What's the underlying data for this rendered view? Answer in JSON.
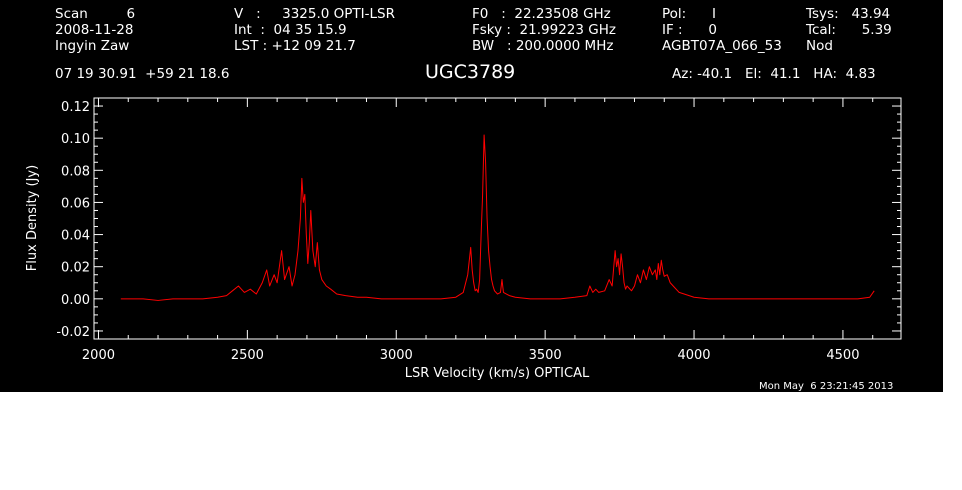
{
  "header": {
    "row1": {
      "scan": "Scan         6",
      "velocity": "V   :     3325.0 OPTI-LSR",
      "f0": "F0   :  22.23508 GHz",
      "pol": "Pol:      I",
      "tsys": "Tsys:   43.94"
    },
    "row2": {
      "date": "2008-11-28",
      "int": "Int  :  04 35 15.9",
      "fsky": "Fsky :  21.99223 GHz",
      "if": "IF :      0",
      "tcal": "Tcal:      5.39"
    },
    "row3": {
      "observer": "Ingyin Zaw",
      "lst": "LST : +12 09 21.7",
      "bw": "BW   : 200.0000 MHz",
      "project": "AGBT07A_066_53",
      "mode": "Nod"
    },
    "row4": {
      "coords": "07 19 30.91  +59 21 18.6",
      "source": "UGC3789",
      "pointing": "Az: -40.1   El:  41.1   HA:  4.83"
    }
  },
  "footer": {
    "timestamp": "Mon May  6 23:21:45 2013"
  },
  "colors": {
    "background": "#000000",
    "axes": "#ffffff",
    "series": "#ff0000"
  },
  "chart_data": {
    "type": "line",
    "title": "UGC3789",
    "xlabel": "LSR Velocity (km/s) OPTICAL",
    "ylabel": "Flux Density (Jy)",
    "xlim": [
      1985,
      4695
    ],
    "ylim": [
      -0.025,
      0.125
    ],
    "xticks": [
      2000,
      2500,
      3000,
      3500,
      4000,
      4500
    ],
    "yticks": [
      -0.02,
      0.0,
      0.02,
      0.04,
      0.06,
      0.08,
      0.1,
      0.12
    ],
    "ytick_labels": [
      "-0.02",
      "0.00",
      "0.02",
      "0.04",
      "0.06",
      "0.08",
      "0.10",
      "0.12"
    ],
    "grid": false,
    "series": [
      {
        "x": [
          2075,
          2100,
          2150,
          2200,
          2250,
          2300,
          2350,
          2400,
          2430,
          2450,
          2470,
          2490,
          2510,
          2530,
          2550,
          2565,
          2575,
          2590,
          2600,
          2615,
          2625,
          2640,
          2650,
          2660,
          2670,
          2678,
          2683,
          2688,
          2693,
          2698,
          2703,
          2708,
          2713,
          2720,
          2728,
          2735,
          2742,
          2750,
          2765,
          2780,
          2800,
          2830,
          2870,
          2900,
          2950,
          3000,
          3050,
          3100,
          3150,
          3200,
          3225,
          3240,
          3250,
          3255,
          3260,
          3265,
          3270,
          3275,
          3280,
          3285,
          3290,
          3295,
          3300,
          3305,
          3310,
          3315,
          3320,
          3325,
          3330,
          3340,
          3350,
          3355,
          3360,
          3380,
          3400,
          3450,
          3500,
          3550,
          3600,
          3640,
          3650,
          3660,
          3670,
          3680,
          3700,
          3715,
          3725,
          3735,
          3740,
          3745,
          3750,
          3755,
          3760,
          3765,
          3770,
          3775,
          3790,
          3800,
          3810,
          3820,
          3830,
          3840,
          3850,
          3860,
          3870,
          3875,
          3880,
          3885,
          3890,
          3895,
          3900,
          3910,
          3920,
          3930,
          3950,
          4000,
          4050,
          4100,
          4150,
          4200,
          4250,
          4300,
          4350,
          4400,
          4450,
          4500,
          4550,
          4590,
          4605
        ],
        "y": [
          0.0,
          0.0,
          0.0,
          -0.001,
          0.0,
          0.0,
          0.0,
          0.001,
          0.002,
          0.005,
          0.008,
          0.004,
          0.006,
          0.003,
          0.01,
          0.018,
          0.008,
          0.015,
          0.01,
          0.03,
          0.012,
          0.02,
          0.008,
          0.015,
          0.03,
          0.05,
          0.075,
          0.06,
          0.065,
          0.04,
          0.022,
          0.035,
          0.055,
          0.03,
          0.02,
          0.035,
          0.018,
          0.012,
          0.008,
          0.006,
          0.003,
          0.002,
          0.001,
          0.001,
          0.0,
          0.0,
          0.0,
          0.0,
          0.0,
          0.001,
          0.004,
          0.015,
          0.032,
          0.018,
          0.01,
          0.005,
          0.006,
          0.004,
          0.012,
          0.04,
          0.065,
          0.102,
          0.085,
          0.05,
          0.03,
          0.02,
          0.012,
          0.008,
          0.005,
          0.003,
          0.004,
          0.012,
          0.004,
          0.002,
          0.001,
          0.0,
          0.0,
          0.0,
          0.001,
          0.002,
          0.008,
          0.004,
          0.006,
          0.004,
          0.005,
          0.012,
          0.008,
          0.03,
          0.02,
          0.025,
          0.015,
          0.028,
          0.02,
          0.01,
          0.006,
          0.008,
          0.005,
          0.008,
          0.015,
          0.01,
          0.018,
          0.012,
          0.02,
          0.015,
          0.018,
          0.012,
          0.022,
          0.015,
          0.024,
          0.018,
          0.014,
          0.015,
          0.01,
          0.008,
          0.004,
          0.001,
          0.0,
          0.0,
          0.0,
          0.0,
          0.0,
          0.0,
          0.0,
          0.0,
          0.0,
          0.0,
          0.0,
          0.001,
          0.005
        ]
      }
    ]
  }
}
